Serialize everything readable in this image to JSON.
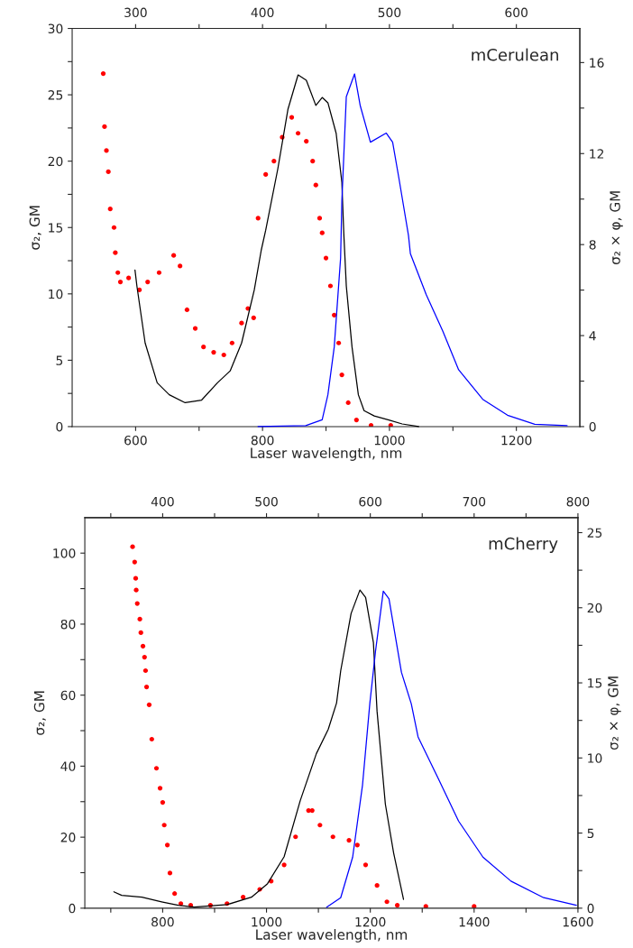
{
  "chart_data": [
    {
      "type": "scatter",
      "xlabel": "Laser wavelength, nm",
      "ylabel": "σ₂, GM",
      "y2label": "σ₂ × φ, GM",
      "annotations": [
        "mCerulean"
      ],
      "legend": false,
      "grid": false,
      "xlim": [
        500,
        1300
      ],
      "xticks": [
        600,
        {
          "value": 700,
          "label": null
        },
        800,
        {
          "value": 900,
          "label": null
        },
        1000,
        {
          "value": 1100,
          "label": null
        },
        1200
      ],
      "x2lim": [
        250,
        650
      ],
      "x2ticks": [
        300,
        {
          "value": 350,
          "label": null
        },
        400,
        {
          "value": 450,
          "label": null
        },
        500,
        {
          "value": 550,
          "label": null
        },
        600
      ],
      "ylim": [
        0,
        30
      ],
      "yticks": [
        0,
        {
          "value": 2.5,
          "label": null
        },
        5,
        {
          "value": 7.5,
          "label": null
        },
        10,
        {
          "value": 12.5,
          "label": null
        },
        15,
        {
          "value": 17.5,
          "label": null
        },
        20,
        {
          "value": 22.5,
          "label": null
        },
        25,
        {
          "value": 27.5,
          "label": null
        },
        30
      ],
      "y2lim": [
        0,
        17.5
      ],
      "y2ticks": [
        0,
        {
          "value": 2,
          "label": null
        },
        4,
        {
          "value": 6,
          "label": null
        },
        8,
        {
          "value": 10,
          "label": null
        },
        12,
        {
          "value": 14,
          "label": null
        },
        16
      ],
      "series": [
        {
          "color": "#ff0000",
          "marker": "circle",
          "x": [
            549,
            551,
            554,
            557,
            560,
            566,
            568,
            572,
            576,
            589,
            606,
            619,
            637,
            660,
            670,
            681,
            694,
            707,
            723,
            739,
            752,
            767,
            777,
            786,
            793,
            805,
            818,
            831,
            846,
            856,
            869,
            879,
            884,
            890,
            894,
            900,
            907,
            913,
            920,
            925,
            935,
            948,
            971,
            1002
          ],
          "values": [
            26.6,
            22.6,
            20.8,
            19.2,
            16.4,
            15.0,
            13.1,
            11.6,
            10.9,
            11.2,
            10.3,
            10.9,
            11.6,
            12.9,
            12.1,
            8.8,
            7.4,
            6.0,
            5.6,
            5.4,
            6.3,
            7.8,
            8.9,
            8.2,
            15.7,
            19.0,
            20.0,
            21.8,
            23.3,
            22.1,
            21.5,
            20.0,
            18.2,
            15.7,
            14.6,
            12.7,
            10.6,
            8.4,
            6.3,
            3.9,
            1.8,
            0.5,
            0.1,
            0.1
          ]
        },
        {
          "type": "line",
          "color": "#000000",
          "line_style": "solid",
          "x": [
            599,
            602,
            615,
            634,
            653,
            678,
            704,
            729,
            749,
            767,
            787,
            798,
            805,
            824,
            840,
            856,
            869,
            884,
            894,
            903,
            916,
            925,
            928,
            932,
            941,
            951,
            960,
            976,
            999,
            1020,
            1046
          ],
          "values": [
            11.8,
            10.6,
            6.3,
            3.3,
            2.4,
            1.8,
            2.0,
            3.3,
            4.2,
            6.3,
            10.3,
            13.3,
            14.8,
            19.4,
            23.9,
            26.5,
            26.1,
            24.2,
            24.8,
            24.4,
            22.1,
            18.4,
            14.6,
            10.6,
            6.0,
            2.4,
            1.2,
            0.8,
            0.5,
            0.2,
            0
          ]
        },
        {
          "type": "line",
          "axis": "y2",
          "color": "#0000ff",
          "line_style": "solid",
          "x": [
            793,
            868,
            894,
            903,
            913,
            923,
            925,
            932,
            945,
            954,
            970,
            995,
            1005,
            1015,
            1030,
            1033,
            1058,
            1084,
            1109,
            1147,
            1186,
            1229,
            1280
          ],
          "values": [
            0,
            0.04,
            0.3,
            1.4,
            3.5,
            7.4,
            9.9,
            14.5,
            15.5,
            14.1,
            12.5,
            12.9,
            12.5,
            10.9,
            8.4,
            7.6,
            5.8,
            4.2,
            2.5,
            1.2,
            0.5,
            0.1,
            0.04
          ]
        }
      ]
    },
    {
      "type": "scatter",
      "xlabel": "Laser wavelength, nm",
      "ylabel": "σ₂, GM",
      "y2label": "σ₂ × φ, GM",
      "annotations": [
        "mCherry"
      ],
      "legend": false,
      "grid": false,
      "xlim": [
        650,
        1600
      ],
      "xticks": [
        {
          "value": 700,
          "label": null
        },
        800,
        {
          "value": 900,
          "label": null
        },
        1000,
        {
          "value": 1100,
          "label": null
        },
        1200,
        {
          "value": 1300,
          "label": null
        },
        1400,
        {
          "value": 1500,
          "label": null
        },
        1600
      ],
      "x2lim": [
        325,
        800
      ],
      "x2ticks": [
        {
          "value": 350,
          "label": null
        },
        400,
        {
          "value": 450,
          "label": null
        },
        500,
        {
          "value": 550,
          "label": null
        },
        600,
        {
          "value": 650,
          "label": null
        },
        700,
        {
          "value": 750,
          "label": null
        },
        800
      ],
      "ylim": [
        0,
        110
      ],
      "yticks": [
        0,
        {
          "value": 10,
          "label": null
        },
        20,
        {
          "value": 30,
          "label": null
        },
        40,
        {
          "value": 50,
          "label": null
        },
        60,
        {
          "value": 70,
          "label": null
        },
        80,
        {
          "value": 90,
          "label": null
        },
        100
      ],
      "y2lim": [
        0,
        26
      ],
      "y2ticks": [
        0,
        {
          "value": 2.5,
          "label": null
        },
        5,
        {
          "value": 7.5,
          "label": null
        },
        10,
        {
          "value": 12.5,
          "label": null
        },
        15,
        {
          "value": 17.5,
          "label": null
        },
        20,
        {
          "value": 22.5,
          "label": null
        },
        25
      ],
      "series": [
        {
          "color": "#ff0000",
          "marker": "circle",
          "x": [
            742,
            746,
            748,
            749,
            751,
            756,
            758,
            762,
            765,
            767,
            769,
            774,
            779,
            788,
            795,
            800,
            803,
            809,
            814,
            823,
            835,
            854,
            892,
            924,
            955,
            987,
            1009,
            1034,
            1056,
            1081,
            1088,
            1103,
            1128,
            1159,
            1175,
            1191,
            1213,
            1232,
            1252,
            1307,
            1400
          ],
          "values": [
            101.8,
            97.5,
            92.9,
            89.6,
            85.8,
            81.4,
            77.6,
            73.8,
            70.7,
            66.9,
            62.3,
            57.3,
            47.6,
            39.4,
            33.8,
            29.8,
            23.4,
            17.8,
            9.9,
            4.1,
            1.3,
            0.8,
            0.8,
            1.3,
            3.1,
            5.3,
            7.6,
            12.2,
            20.1,
            27.5,
            27.5,
            23.4,
            20.1,
            19.1,
            17.8,
            12.2,
            6.4,
            1.8,
            0.8,
            0.5,
            0.5
          ]
        },
        {
          "type": "line",
          "color": "#000000",
          "line_style": "solid",
          "x": [
            706,
            721,
            760,
            798,
            830,
            861,
            924,
            971,
            1002,
            1034,
            1065,
            1096,
            1119,
            1135,
            1143,
            1163,
            1180,
            1191,
            1206,
            1213,
            1229,
            1245,
            1264
          ],
          "values": [
            4.6,
            3.6,
            3.1,
            1.8,
            0.8,
            0.3,
            1.0,
            3.1,
            6.9,
            14.5,
            30.3,
            43.5,
            50.4,
            57.8,
            66.9,
            83.0,
            89.6,
            87.5,
            74.8,
            55.5,
            29.3,
            15.5,
            2.5
          ]
        },
        {
          "type": "line",
          "axis": "y2",
          "color": "#0000ff",
          "line_style": "solid",
          "x": [
            1116,
            1143,
            1166,
            1185,
            1199,
            1210,
            1225,
            1236,
            1260,
            1279,
            1292,
            1330,
            1370,
            1417,
            1471,
            1534,
            1597
          ],
          "values": [
            0.06,
            0.7,
            3.4,
            8.2,
            13.6,
            17.1,
            21.1,
            20.6,
            15.7,
            13.6,
            11.4,
            8.7,
            5.8,
            3.4,
            1.8,
            0.7,
            0.2
          ]
        }
      ]
    }
  ]
}
